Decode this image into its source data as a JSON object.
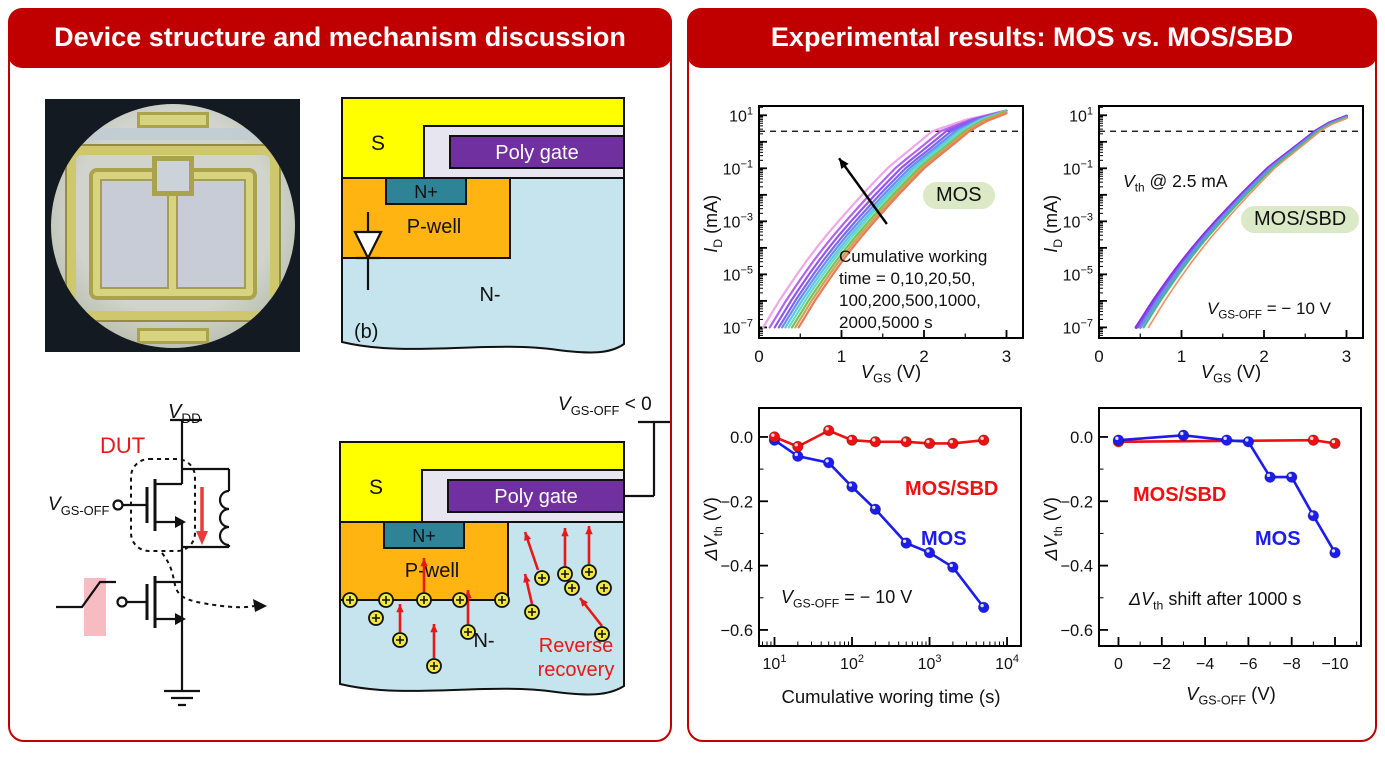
{
  "slide": {
    "bg": "#ffffff",
    "accent_red": "#c00000",
    "badge_green": "#dce9c6"
  },
  "left_panel": {
    "title": "Device structure and mechanism discussion",
    "cross_section_initial": {
      "source": "S",
      "poly_gate": "Poly gate",
      "n_plus": "N+",
      "p_well": "P-well",
      "n_minus": "N-",
      "fig_label": "(b)"
    },
    "circuit": {
      "vdd": {
        "pre": "V",
        "sub": "DD"
      },
      "dut": "DUT",
      "vgs_off": {
        "pre": "V",
        "sub": "GS-OFF"
      }
    },
    "cross_section_stress": {
      "source": "S",
      "poly_gate": "Poly gate",
      "n_plus": "N+",
      "p_well": "P-well",
      "n_minus": "N-",
      "gate_bias": {
        "pre": "V",
        "sub": "GS-OFF",
        "post": " < 0"
      },
      "reverse": "Reverse",
      "recovery": "recovery"
    }
  },
  "right_panel": {
    "title": "Experimental results: MOS vs. MOS/SBD"
  },
  "chart_data": [
    {
      "type": "line",
      "id": "mos_transfer",
      "badge": "MOS",
      "xlabel": {
        "pre": "V",
        "sub": "GS",
        "post": " (V)"
      },
      "ylabel": {
        "pre": "I",
        "sub": "D",
        "post": " (mA)"
      },
      "x_range": [
        0,
        3.2
      ],
      "x_ticks": [
        0,
        1,
        2,
        3
      ],
      "x_minor_step": 0.5,
      "y_log_range": [
        -7.4,
        1.35
      ],
      "y_labeled_decades": [
        1,
        -1,
        -3,
        -5,
        -7
      ],
      "threshold_line_mA": 2.5,
      "annotation": [
        "Cumulative working",
        "time = 0,10,20,50,",
        "100,200,500,1000,",
        "2000,5000 s"
      ],
      "arrow": {
        "from_v": 1.55,
        "from_logI": -3.1,
        "to_v": 0.97,
        "to_logI": -0.62
      },
      "series": [
        {
          "time_s": 5000,
          "color": "#f0a6ea",
          "v_at_1e7": 0.05,
          "v_at_th": 2.1
        },
        {
          "time_s": 2000,
          "color": "#b364ec",
          "v_at_1e7": 0.13,
          "v_at_th": 2.2
        },
        {
          "time_s": 1000,
          "color": "#9355ee",
          "v_at_1e7": 0.19,
          "v_at_th": 2.27
        },
        {
          "time_s": 500,
          "color": "#7b68f0",
          "v_at_1e7": 0.24,
          "v_at_th": 2.33
        },
        {
          "time_s": 200,
          "color": "#6d8cf0",
          "v_at_1e7": 0.28,
          "v_at_th": 2.38
        },
        {
          "time_s": 100,
          "color": "#59c8e4",
          "v_at_1e7": 0.32,
          "v_at_th": 2.42
        },
        {
          "time_s": 50,
          "color": "#68d8c8",
          "v_at_1e7": 0.36,
          "v_at_th": 2.45
        },
        {
          "time_s": 20,
          "color": "#79c24c",
          "v_at_1e7": 0.4,
          "v_at_th": 2.49
        },
        {
          "time_s": 10,
          "color": "#cfa05e",
          "v_at_1e7": 0.44,
          "v_at_th": 2.52
        },
        {
          "time_s": 0,
          "color": "#ec7b55",
          "v_at_1e7": 0.48,
          "v_at_th": 2.55
        }
      ]
    },
    {
      "type": "line",
      "id": "mossbd_transfer",
      "badge": "MOS/SBD",
      "xlabel": {
        "pre": "V",
        "sub": "GS",
        "post": " (V)"
      },
      "ylabel": {
        "pre": "I",
        "sub": "D",
        "post": " (mA)"
      },
      "x_range": [
        0,
        3.2
      ],
      "x_ticks": [
        0,
        1,
        2,
        3
      ],
      "x_minor_step": 0.5,
      "y_log_range": [
        -7.4,
        1.35
      ],
      "y_labeled_decades": [
        1,
        -1,
        -3,
        -5,
        -7
      ],
      "threshold_line_mA": 2.5,
      "note_vth": {
        "pre": "V",
        "sub": "th",
        "post": " @ 2.5 mA"
      },
      "note_bias": {
        "pre": "V",
        "sub": "GS-OFF",
        "post": " = − 10 V"
      },
      "series": [
        {
          "color": "#8f2be0",
          "v_at_1e7": 0.45,
          "v_at_th": 2.62,
          "w": 3
        },
        {
          "color": "#7a55ea",
          "v_at_1e7": 0.47,
          "v_at_th": 2.63,
          "w": 2.2
        },
        {
          "color": "#6e8cee",
          "v_at_1e7": 0.5,
          "v_at_th": 2.65,
          "w": 3
        },
        {
          "color": "#46b98c",
          "v_at_1e7": 0.54,
          "v_at_th": 2.66,
          "w": 2.2
        },
        {
          "color": "#ef9263",
          "v_at_1e7": 0.6,
          "v_at_th": 2.68,
          "w": 1.6
        }
      ]
    },
    {
      "type": "scatter-line",
      "id": "dvth_time",
      "xlabel": "Cumulative woring time (s)",
      "ylabel": {
        "pre": "ΔV",
        "sub": "th",
        "post": " (V)"
      },
      "x_log_range": [
        0.8,
        4.18
      ],
      "x_labeled_decades": [
        1,
        2,
        3,
        4
      ],
      "y_range": [
        -0.65,
        0.09
      ],
      "y_ticks": [
        {
          "v": 0,
          "label": "0.0"
        },
        {
          "v": -0.2,
          "label": "−0.2"
        },
        {
          "v": -0.4,
          "label": "−0.4"
        },
        {
          "v": -0.6,
          "label": "−0.6"
        }
      ],
      "note_bias": {
        "pre": "V",
        "sub": "GS-OFF",
        "post": " = − 10 V"
      },
      "series": [
        {
          "name": "MOS",
          "color": "#1c1cee",
          "x": [
            10,
            20,
            50,
            100,
            200,
            500,
            1000,
            2000,
            5000
          ],
          "y": [
            -0.01,
            -0.06,
            -0.08,
            -0.155,
            -0.225,
            -0.33,
            -0.36,
            -0.405,
            -0.53
          ]
        },
        {
          "name": "MOS/SBD",
          "color": "#ee1111",
          "x": [
            10,
            20,
            50,
            100,
            200,
            500,
            1000,
            2000,
            5000
          ],
          "y": [
            0.0,
            -0.03,
            0.02,
            -0.01,
            -0.015,
            -0.015,
            -0.02,
            -0.02,
            -0.01
          ]
        }
      ]
    },
    {
      "type": "scatter-line",
      "id": "dvth_vgsoff",
      "xlabel": {
        "pre": "V",
        "sub": "GS-OFF",
        "post": " (V)"
      },
      "ylabel": {
        "pre": "ΔV",
        "sub": "th",
        "post": " (V)"
      },
      "x_range": [
        0.9,
        -11.2
      ],
      "x_ticks": [
        {
          "v": 0,
          "label": "0"
        },
        {
          "v": -2,
          "label": "−2"
        },
        {
          "v": -4,
          "label": "−4"
        },
        {
          "v": -6,
          "label": "−6"
        },
        {
          "v": -8,
          "label": "−8"
        },
        {
          "v": -10,
          "label": "−10"
        }
      ],
      "y_range": [
        -0.65,
        0.09
      ],
      "y_ticks": [
        {
          "v": 0,
          "label": "0.0"
        },
        {
          "v": -0.2,
          "label": "−0.2"
        },
        {
          "v": -0.4,
          "label": "−0.4"
        },
        {
          "v": -0.6,
          "label": "−0.6"
        }
      ],
      "note_shift": {
        "pre": "ΔV",
        "sub": "th",
        "post": " shift after 1000 s"
      },
      "series": [
        {
          "name": "MOS/SBD",
          "color": "#ee1111",
          "x": [
            0,
            -9,
            -10
          ],
          "y": [
            -0.015,
            -0.01,
            -0.02
          ]
        },
        {
          "name": "MOS",
          "color": "#1c1cee",
          "x": [
            0,
            -3,
            -5,
            -6,
            -7,
            -8,
            -9,
            -10
          ],
          "y": [
            -0.01,
            0.005,
            -0.01,
            -0.015,
            -0.125,
            -0.125,
            -0.245,
            -0.36
          ]
        }
      ]
    }
  ]
}
